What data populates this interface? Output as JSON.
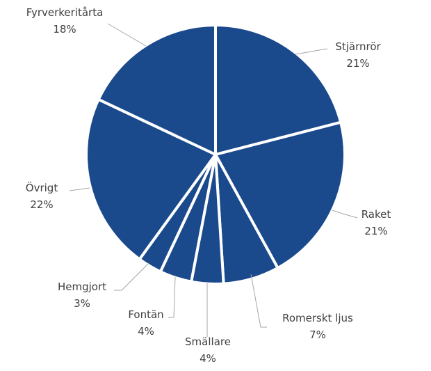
{
  "chart_data": {
    "type": "pie",
    "title": "",
    "start_angle": "12 o'clock, clockwise",
    "legend": "none (data labels with leader lines)",
    "slice_color": "#1a4a8c",
    "border_color": "#ffffff",
    "label_color": "#404040",
    "leader_color": "#a6a6a6",
    "slices": [
      {
        "label": "Stjärnrör",
        "value": 21,
        "display": "21%"
      },
      {
        "label": "Raket",
        "value": 21,
        "display": "21%"
      },
      {
        "label": "Romerskt ljus",
        "value": 7,
        "display": "7%"
      },
      {
        "label": "Smällare",
        "value": 4,
        "display": "4%"
      },
      {
        "label": "Fontän",
        "value": 4,
        "display": "4%"
      },
      {
        "label": "Hemgjort",
        "value": 3,
        "display": "3%"
      },
      {
        "label": "Övrigt",
        "value": 22,
        "display": "22%"
      },
      {
        "label": "Fyrverkeritårta",
        "value": 18,
        "display": "18%"
      }
    ]
  }
}
